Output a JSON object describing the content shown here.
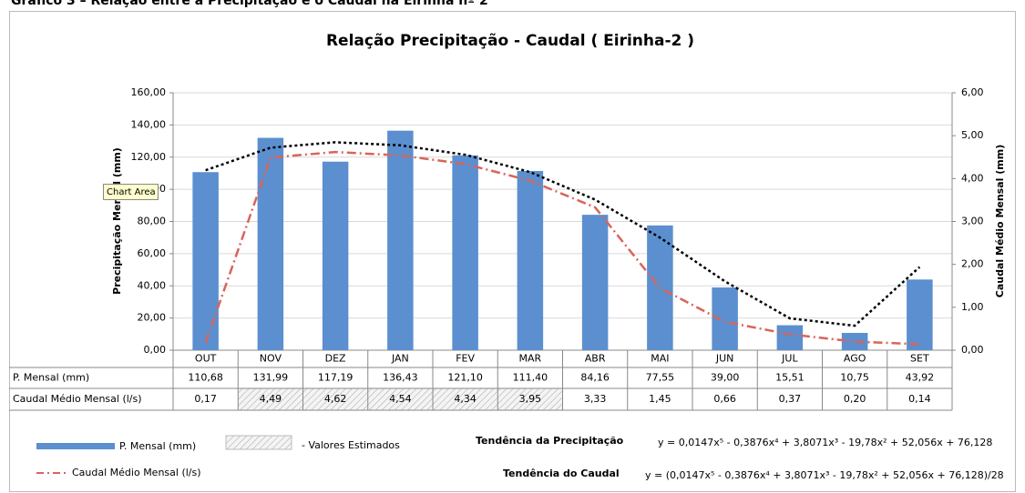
{
  "caption": "Gráfico 3 – Relação entre a Precipitação e o Caudal na Eirinha nº 2",
  "tooltip": "Chart Area",
  "chart_data": {
    "type": "bar-line",
    "title": "Relação Precipitação - Caudal ( Eirinha-2 )",
    "y_label": "Precipitação Mensal (mm)",
    "y2_label": "Caudal Médio Mensal (mm)",
    "categories": [
      "OUT",
      "NOV",
      "DEZ",
      "JAN",
      "FEV",
      "MAR",
      "ABR",
      "MAI",
      "JUN",
      "JUL",
      "AGO",
      "SET"
    ],
    "ylim": [
      0,
      160
    ],
    "yticks": [
      {
        "value": 0,
        "label": "0,00"
      },
      {
        "value": 20,
        "label": "20,00"
      },
      {
        "value": 40,
        "label": "40,00"
      },
      {
        "value": 60,
        "label": "60,00"
      },
      {
        "value": 80,
        "label": "80,00"
      },
      {
        "value": 100,
        "label": "100,00"
      },
      {
        "value": 120,
        "label": "120,00"
      },
      {
        "value": 140,
        "label": "140,00"
      },
      {
        "value": 160,
        "label": "160,00"
      }
    ],
    "y2lim": [
      0,
      6
    ],
    "y2ticks": [
      {
        "value": 0,
        "label": "0,00"
      },
      {
        "value": 1,
        "label": "1,00"
      },
      {
        "value": 2,
        "label": "2,00"
      },
      {
        "value": 3,
        "label": "3,00"
      },
      {
        "value": 4,
        "label": "4,00"
      },
      {
        "value": 5,
        "label": "5,00"
      },
      {
        "value": 6,
        "label": "6,00"
      }
    ],
    "grid": true,
    "series": [
      {
        "name": "P. Mensal (mm)",
        "kind": "bar",
        "color": "#5b8fcf",
        "values": [
          110.68,
          131.99,
          117.19,
          136.43,
          121.1,
          111.4,
          84.16,
          77.55,
          39.0,
          15.51,
          10.75,
          43.92
        ],
        "value_labels": [
          "110,68",
          "131,99",
          "117,19",
          "136,43",
          "121,10",
          "111,40",
          "84,16",
          "77,55",
          "39,00",
          "15,51",
          "10,75",
          "43,92"
        ]
      },
      {
        "name": "Caudal Médio Mensal (l/s)",
        "kind": "line",
        "axis": "y2",
        "color": "#d9645a",
        "dash": "dashdot",
        "values": [
          0.17,
          4.49,
          4.62,
          4.54,
          4.34,
          3.95,
          3.33,
          1.45,
          0.66,
          0.37,
          0.2,
          0.14
        ],
        "value_labels": [
          "0,17",
          "4,49",
          "4,62",
          "4,54",
          "4,34",
          "3,95",
          "3,33",
          "1,45",
          "0,66",
          "0,37",
          "0,20",
          "0,14"
        ],
        "estimated": [
          false,
          true,
          true,
          true,
          true,
          true,
          false,
          false,
          false,
          false,
          false,
          false
        ]
      },
      {
        "name": "Tendência da Precipitação",
        "kind": "trend",
        "color": "#000000",
        "dash": "dotted",
        "equation": "y = 0,0147x⁵ - 0,3876x⁴ + 3,8071x³ - 19,78x² + 52,056x + 76,128",
        "values": [
          111.84,
          125.85,
          129.24,
          127.35,
          121.48,
          110.7,
          93.57,
          69.97,
          42.8,
          19.79,
          15.21,
          51.71
        ]
      }
    ],
    "caudal_trend": {
      "name": "Tendência do Caudal",
      "equation": "y = (0,0147x⁵ - 0,3876x⁴ + 3,8071x³ - 19,78x² + 52,056x + 76,128)/28"
    },
    "estimated_note": "- Valores Estimados"
  }
}
